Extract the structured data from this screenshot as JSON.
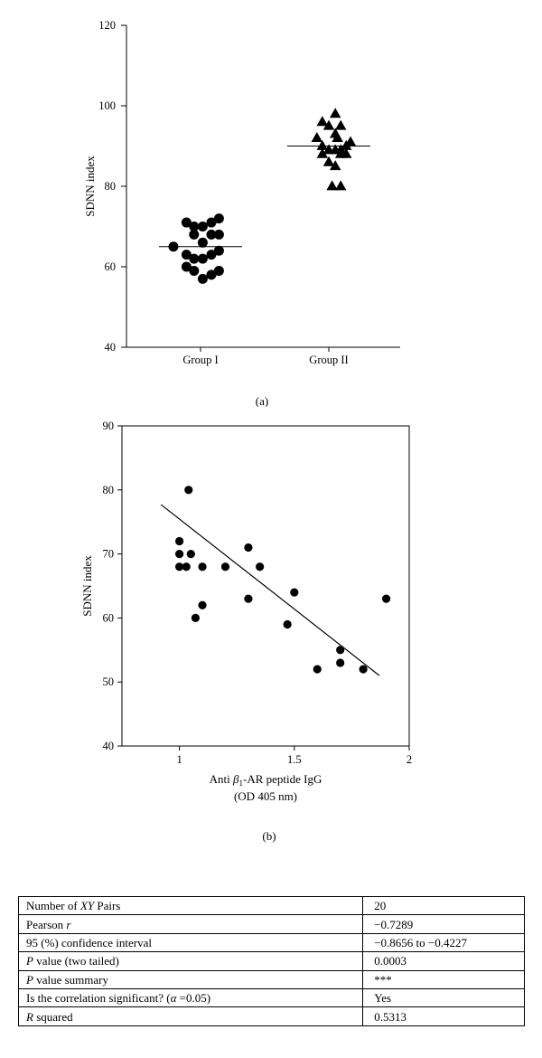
{
  "chart_data": [
    {
      "type": "scatter",
      "panel": "(a)",
      "ylabel": "SDNN index",
      "ylim": [
        40,
        120
      ],
      "yticks": [
        "40",
        "60",
        "80",
        "100",
        "120"
      ],
      "categories": [
        "Group I",
        "Group II"
      ],
      "series": [
        {
          "marker": "circle",
          "mean": 65,
          "points": [
            {
              "offset": -1.25,
              "y": 65
            },
            {
              "offset": -0.65,
              "y": 71
            },
            {
              "offset": -0.3,
              "y": 70
            },
            {
              "offset": 0.1,
              "y": 70
            },
            {
              "offset": 0.5,
              "y": 71
            },
            {
              "offset": 0.85,
              "y": 72
            },
            {
              "offset": -0.3,
              "y": 68
            },
            {
              "offset": 0.5,
              "y": 68
            },
            {
              "offset": 0.85,
              "y": 68
            },
            {
              "offset": 0.1,
              "y": 66
            },
            {
              "offset": -0.65,
              "y": 63
            },
            {
              "offset": 0.5,
              "y": 63
            },
            {
              "offset": -0.3,
              "y": 62
            },
            {
              "offset": 0.1,
              "y": 62
            },
            {
              "offset": 0.85,
              "y": 64
            },
            {
              "offset": -0.65,
              "y": 60
            },
            {
              "offset": -0.3,
              "y": 59
            },
            {
              "offset": 0.85,
              "y": 59
            },
            {
              "offset": 0.5,
              "y": 58
            },
            {
              "offset": 0.1,
              "y": 57
            }
          ]
        },
        {
          "marker": "triangle",
          "mean": 90,
          "points": [
            {
              "offset": -0.3,
              "y": 96
            },
            {
              "offset": 0.3,
              "y": 98
            },
            {
              "offset": 0.0,
              "y": 95
            },
            {
              "offset": 0.55,
              "y": 95
            },
            {
              "offset": 0.3,
              "y": 93
            },
            {
              "offset": 0.4,
              "y": 92
            },
            {
              "offset": -0.55,
              "y": 92
            },
            {
              "offset": 1.0,
              "y": 91
            },
            {
              "offset": -0.3,
              "y": 90
            },
            {
              "offset": 0.8,
              "y": 90
            },
            {
              "offset": 0.0,
              "y": 89
            },
            {
              "offset": 0.3,
              "y": 89
            },
            {
              "offset": 0.55,
              "y": 89
            },
            {
              "offset": -0.3,
              "y": 88
            },
            {
              "offset": 0.55,
              "y": 88
            },
            {
              "offset": 0.8,
              "y": 88
            },
            {
              "offset": 0.0,
              "y": 86
            },
            {
              "offset": 0.3,
              "y": 85
            },
            {
              "offset": 0.15,
              "y": 80
            },
            {
              "offset": 0.55,
              "y": 80
            }
          ]
        }
      ]
    },
    {
      "type": "scatter",
      "panel": "(b)",
      "ylabel": "SDNN index",
      "xlabel_prefix": "Anti ",
      "xlabel_beta": "β",
      "xlabel_sub": "1",
      "xlabel_suffix": "-AR peptide IgG",
      "xlabel_line2": "(OD 405 nm)",
      "xlim": [
        0.75,
        2
      ],
      "ylim": [
        40,
        90
      ],
      "xticks": [
        {
          "v": 1,
          "label": "1"
        },
        {
          "v": 1.5,
          "label": "1.5"
        },
        {
          "v": 2,
          "label": "2"
        }
      ],
      "yticks": [
        "40",
        "50",
        "60",
        "70",
        "80",
        "90"
      ],
      "points": [
        {
          "x": 1.04,
          "y": 80
        },
        {
          "x": 1.0,
          "y": 72
        },
        {
          "x": 1.0,
          "y": 70
        },
        {
          "x": 1.05,
          "y": 70
        },
        {
          "x": 1.0,
          "y": 68
        },
        {
          "x": 1.03,
          "y": 68
        },
        {
          "x": 1.1,
          "y": 68
        },
        {
          "x": 1.2,
          "y": 68
        },
        {
          "x": 1.3,
          "y": 71
        },
        {
          "x": 1.35,
          "y": 68
        },
        {
          "x": 1.3,
          "y": 63
        },
        {
          "x": 1.1,
          "y": 62
        },
        {
          "x": 1.07,
          "y": 60
        },
        {
          "x": 1.5,
          "y": 64
        },
        {
          "x": 1.47,
          "y": 59
        },
        {
          "x": 1.9,
          "y": 63
        },
        {
          "x": 1.7,
          "y": 55
        },
        {
          "x": 1.7,
          "y": 53
        },
        {
          "x": 1.6,
          "y": 52
        },
        {
          "x": 1.8,
          "y": 52
        }
      ],
      "fit_line": [
        {
          "x": 0.92,
          "y": 77.7
        },
        {
          "x": 1.87,
          "y": 51.0
        }
      ]
    }
  ],
  "stats_table": {
    "rows": [
      {
        "pre": "Number of ",
        "em": "XY",
        "post": " Pairs",
        "value": "20"
      },
      {
        "pre": "Pearson ",
        "em": "r",
        "post": "",
        "value": "−0.7289"
      },
      {
        "pre": "95 (%) confidence interval",
        "em": "",
        "post": "",
        "value": "−0.8656 to −0.4227"
      },
      {
        "pre": "",
        "em": "P",
        "post": " value (two tailed)",
        "value": "0.0003"
      },
      {
        "pre": "",
        "em": "P",
        "post": " value summary",
        "value": "***"
      },
      {
        "pre": "Is the correlation significant? (",
        "em": "α",
        "post": " =0.05)",
        "value": "Yes"
      },
      {
        "pre": "",
        "em": "R",
        "post": " squared",
        "value": "0.5313"
      }
    ]
  }
}
